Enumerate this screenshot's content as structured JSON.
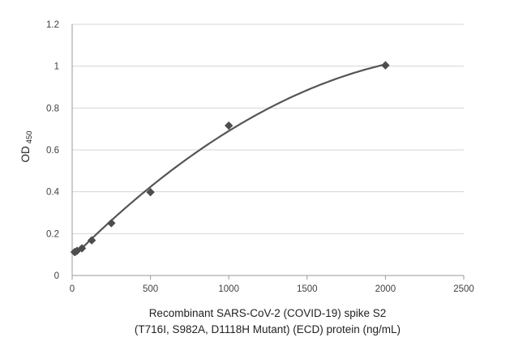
{
  "chart_data": {
    "type": "scatter",
    "xlabel_line1": "Recombinant SARS-CoV-2 (COVID-19) spike S2",
    "xlabel_line2": "(T716I, S982A, D1118H Mutant) (ECD) protein (ng/mL)",
    "ylabel": "OD",
    "ylabel_sub": "450",
    "xlim": [
      0,
      2500
    ],
    "ylim": [
      0,
      1.2
    ],
    "x_ticks": [
      "0",
      "500",
      "1000",
      "1500",
      "2000",
      "2500"
    ],
    "y_ticks": [
      "0",
      "0.2",
      "0.4",
      "0.6",
      "0.8",
      "1",
      "1.2"
    ],
    "grid": "horizontal",
    "series": [
      {
        "x": [
          15.6,
          31.25,
          62.5,
          125,
          250,
          500,
          1000,
          2000
        ],
        "y": [
          0.112,
          0.118,
          0.13,
          0.168,
          0.25,
          0.398,
          0.716,
          1.004
        ]
      }
    ],
    "trendline": "polynomial",
    "colors": {
      "marker": "#4d4d4d",
      "trendline": "#555555",
      "grid": "#d4d4d4"
    }
  }
}
